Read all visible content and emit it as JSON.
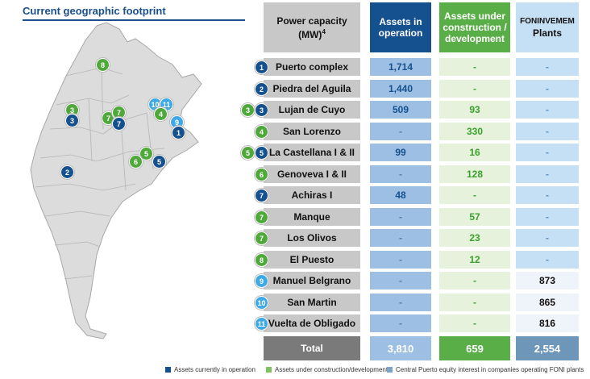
{
  "map": {
    "title": "Current geographic footprint",
    "markers": [
      {
        "n": "8",
        "color": "green"
      },
      {
        "n": "3",
        "color": "green"
      },
      {
        "n": "3",
        "color": "dark"
      },
      {
        "n": "7",
        "color": "green"
      },
      {
        "n": "7",
        "color": "green"
      },
      {
        "n": "7",
        "color": "dark"
      },
      {
        "n": "10",
        "color": "light"
      },
      {
        "n": "11",
        "color": "light"
      },
      {
        "n": "4",
        "color": "green"
      },
      {
        "n": "9",
        "color": "light"
      },
      {
        "n": "1",
        "color": "dark"
      },
      {
        "n": "5",
        "color": "green"
      },
      {
        "n": "6",
        "color": "green"
      },
      {
        "n": "5",
        "color": "dark"
      },
      {
        "n": "2",
        "color": "dark"
      }
    ]
  },
  "table": {
    "headers": {
      "plant": "Power capacity (MW)",
      "plant_sup": "4",
      "operation": "Assets in operation",
      "construction": "Assets under construction / development",
      "foni_top": "FONINVEMEM",
      "foni_bottom": "Plants"
    },
    "rows": [
      {
        "badges": [
          {
            "n": "1",
            "color": "dark"
          }
        ],
        "plant": "Puerto complex",
        "operation": "1,714",
        "construction": "-",
        "foni": "-"
      },
      {
        "badges": [
          {
            "n": "2",
            "color": "dark"
          }
        ],
        "plant": "Piedra del Aguila",
        "operation": "1,440",
        "construction": "-",
        "foni": "-"
      },
      {
        "badges": [
          {
            "n": "3",
            "color": "green"
          },
          {
            "n": "3",
            "color": "dark"
          }
        ],
        "plant": "Lujan de Cuyo",
        "operation": "509",
        "construction": "93",
        "foni": "-"
      },
      {
        "badges": [
          {
            "n": "4",
            "color": "green"
          }
        ],
        "plant": "San Lorenzo",
        "operation": "-",
        "construction": "330",
        "foni": "-"
      },
      {
        "badges": [
          {
            "n": "5",
            "color": "green"
          },
          {
            "n": "5",
            "color": "dark"
          }
        ],
        "plant": "La Castellana I & II",
        "operation": "99",
        "construction": "16",
        "foni": "-"
      },
      {
        "badges": [
          {
            "n": "6",
            "color": "green"
          }
        ],
        "plant": "Genoveva I & II",
        "operation": "-",
        "construction": "128",
        "foni": "-"
      },
      {
        "badges": [
          {
            "n": "7",
            "color": "dark"
          }
        ],
        "plant": "Achiras I",
        "operation": "48",
        "construction": "-",
        "foni": "-"
      },
      {
        "badges": [
          {
            "n": "7",
            "color": "green"
          }
        ],
        "plant": "Manque",
        "operation": "-",
        "construction": "57",
        "foni": "-"
      },
      {
        "badges": [
          {
            "n": "7",
            "color": "green"
          }
        ],
        "plant": "Los Olivos",
        "operation": "-",
        "construction": "23",
        "foni": "-"
      },
      {
        "badges": [
          {
            "n": "8",
            "color": "green"
          }
        ],
        "plant": "El Puesto",
        "operation": "-",
        "construction": "12",
        "foni": "-"
      },
      {
        "badges": [
          {
            "n": "9",
            "color": "light"
          }
        ],
        "plant": "Manuel Belgrano",
        "operation": "-",
        "construction": "-",
        "foni": "873"
      },
      {
        "badges": [
          {
            "n": "10",
            "color": "light"
          }
        ],
        "plant": "San Martin",
        "operation": "-",
        "construction": "-",
        "foni": "865"
      },
      {
        "badges": [
          {
            "n": "11",
            "color": "light"
          }
        ],
        "plant": "Vuelta de Obligado",
        "operation": "-",
        "construction": "-",
        "foni": "816"
      }
    ],
    "total": {
      "label": "Total",
      "operation": "3,810",
      "construction": "659",
      "foni": "2,554"
    }
  },
  "colors": {
    "dark_blue": "#15518f",
    "green": "#4fa83a",
    "light_blue": "#3fa9e5",
    "total_bg": "#7a7a7a",
    "total_op": "#9dbfe3",
    "total_con": "#5aae48",
    "total_foni": "#6d96b8"
  },
  "legend": [
    {
      "label": "Assets currently in operation",
      "color": "#15518f"
    },
    {
      "label": "Assets under construction/development",
      "color": "#7ec262"
    },
    {
      "label": "Central Puerto equity interest in companies operating FONI plants",
      "color": "#7ea3c8"
    }
  ]
}
